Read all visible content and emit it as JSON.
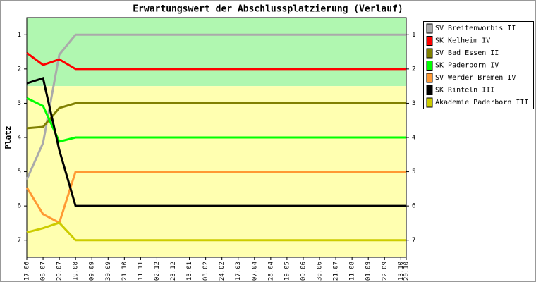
{
  "chart_data": {
    "type": "line",
    "title": "Erwartungswert der Abschlussplatzierung (Verlauf)",
    "y_label": "Platz",
    "y_inverted": true,
    "x": [
      0,
      21,
      42,
      63,
      490
    ],
    "xlim": [
      0,
      490
    ],
    "xticks": [
      {
        "value": 0,
        "label": "17.06"
      },
      {
        "value": 21,
        "label": "08.07"
      },
      {
        "value": 42,
        "label": "29.07"
      },
      {
        "value": 63,
        "label": "19.08"
      },
      {
        "value": 84,
        "label": "09.09"
      },
      {
        "value": 105,
        "label": "30.09"
      },
      {
        "value": 126,
        "label": "21.10"
      },
      {
        "value": 147,
        "label": "11.11"
      },
      {
        "value": 168,
        "label": "02.12"
      },
      {
        "value": 189,
        "label": "23.12"
      },
      {
        "value": 210,
        "label": "13.01"
      },
      {
        "value": 231,
        "label": "03.02"
      },
      {
        "value": 252,
        "label": "24.02"
      },
      {
        "value": 273,
        "label": "17.03"
      },
      {
        "value": 294,
        "label": "07.04"
      },
      {
        "value": 315,
        "label": "28.04"
      },
      {
        "value": 336,
        "label": "19.05"
      },
      {
        "value": 357,
        "label": "09.06"
      },
      {
        "value": 378,
        "label": "30.06"
      },
      {
        "value": 399,
        "label": "21.07"
      },
      {
        "value": 420,
        "label": "11.08"
      },
      {
        "value": 441,
        "label": "01.09"
      },
      {
        "value": 462,
        "label": "22.09"
      },
      {
        "value": 483,
        "label": "13.10"
      },
      {
        "value": 490,
        "label": "20.10"
      }
    ],
    "ylim": [
      0.5,
      7.5
    ],
    "yticks": [
      1,
      2,
      3,
      4,
      5,
      6,
      7
    ],
    "bands": [
      {
        "from": 0.5,
        "to": 2.5,
        "color": "#b0f7b0"
      },
      {
        "from": 2.5,
        "to": 7.5,
        "color": "#ffffb0"
      }
    ],
    "series": [
      {
        "name": "SV Breitenworbis II",
        "color": "#aaaaaa",
        "values": [
          5.23,
          4.16,
          1.58,
          1,
          1
        ]
      },
      {
        "name": "SK Kelheim IV",
        "color": "#ff0000",
        "values": [
          1.53,
          1.88,
          1.72,
          2,
          2
        ]
      },
      {
        "name": "SV Bad Essen II",
        "color": "#808000",
        "values": [
          3.73,
          3.69,
          3.14,
          3,
          3
        ]
      },
      {
        "name": "SK Paderborn IV",
        "color": "#00ff00",
        "values": [
          2.85,
          3.08,
          4.12,
          4,
          4
        ]
      },
      {
        "name": "SV Werder Bremen IV",
        "color": "#ff9933",
        "values": [
          5.46,
          6.24,
          6.49,
          5,
          5
        ]
      },
      {
        "name": "SK Rinteln III",
        "color": "#000000",
        "values": [
          2.42,
          2.27,
          4.37,
          6,
          6
        ]
      },
      {
        "name": "Akademie Paderborn III",
        "color": "#cccc00",
        "values": [
          6.77,
          6.65,
          6.49,
          7,
          7
        ]
      }
    ]
  }
}
